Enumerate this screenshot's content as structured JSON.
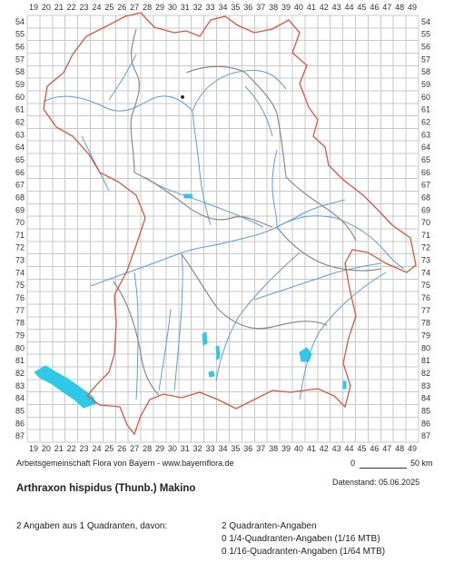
{
  "axes": {
    "x_ticks": [
      "19",
      "20",
      "21",
      "22",
      "23",
      "24",
      "25",
      "26",
      "27",
      "28",
      "29",
      "30",
      "31",
      "32",
      "33",
      "34",
      "35",
      "36",
      "37",
      "38",
      "39",
      "40",
      "41",
      "42",
      "43",
      "44",
      "45",
      "46",
      "47",
      "48",
      "49"
    ],
    "y_ticks": [
      "54",
      "55",
      "56",
      "57",
      "58",
      "59",
      "60",
      "61",
      "62",
      "63",
      "64",
      "65",
      "66",
      "67",
      "68",
      "69",
      "70",
      "71",
      "72",
      "73",
      "74",
      "75",
      "76",
      "77",
      "78",
      "79",
      "80",
      "81",
      "82",
      "83",
      "84",
      "85",
      "86",
      "87"
    ]
  },
  "observations": [
    {
      "x": 30.8,
      "y": 60.0
    }
  ],
  "colors": {
    "grid": "#c8c8c8",
    "state_border": "#d9573b",
    "district_border": "#8a8a8a",
    "rivers": "#5aa0d8",
    "lakes": "#2ec9e8",
    "observation": "#000000"
  },
  "footer": {
    "credit": "Arbeitsgemeinschaft Flora von Bayern - www.bayernflora.de",
    "scale_zero": "0",
    "scale_label": "50 km",
    "date": "Datenstand: 05.06.2025"
  },
  "title": "Arthraxon hispidus (Thunb.) Makino",
  "summary": {
    "total": "2 Angaben aus 1 Quadranten, davon:",
    "line1": "2 Quadranten-Angaben",
    "line2": "0 1/4-Quadranten-Angaben (1/16 MTB)",
    "line3": "0 1/16-Quadranten-Angaben (1/64 MTB)"
  }
}
